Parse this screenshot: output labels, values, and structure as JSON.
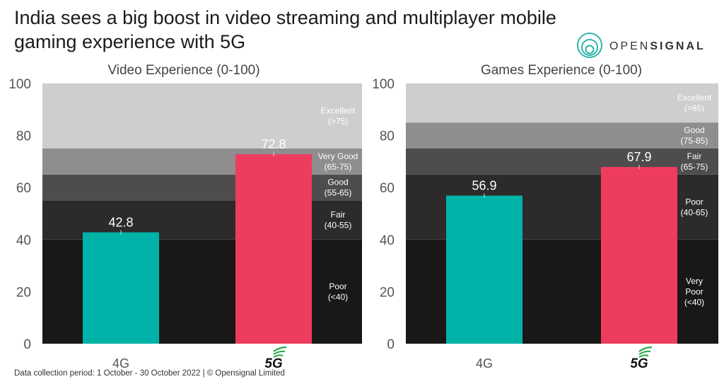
{
  "title_line1": "India sees a big boost in video streaming and multiplayer mobile",
  "title_line2": "gaming experience with 5G",
  "logo": {
    "text_light": "OPEN",
    "text_bold": "SIGNAL",
    "icon": "opensignal-rings-icon"
  },
  "footer": "Data collection period: 1 October - 30 October 2022  |  © Opensignal Limited",
  "colors": {
    "4g": "#00b3a9",
    "5g": "#ee3c5f",
    "5g_logo_wave": "#2eaa4f"
  },
  "chart_data": [
    {
      "type": "bar",
      "title": "Video Experience (0-100)",
      "categories": [
        "4G",
        "5G"
      ],
      "values": [
        42.8,
        72.8
      ],
      "value_labels": [
        "42.8",
        "72.8"
      ],
      "ylim": [
        0,
        100
      ],
      "yticks": [
        "0",
        "20",
        "40",
        "60",
        "80",
        "100"
      ],
      "bands": [
        {
          "from": 0,
          "to": 40,
          "lines": [
            "Poor",
            "(<40)"
          ],
          "color": "#191718"
        },
        {
          "from": 40,
          "to": 55,
          "lines": [
            "Fair",
            "(40-55)"
          ],
          "color": "#2c2a2b"
        },
        {
          "from": 55,
          "to": 65,
          "lines": [
            "Good",
            "(55-65)"
          ],
          "color": "#4e4c4d"
        },
        {
          "from": 65,
          "to": 75,
          "lines": [
            "Very Good",
            "(65-75)"
          ],
          "color": "#8f8d8e"
        },
        {
          "from": 75,
          "to": 100,
          "lines": [
            "Excellent",
            "(>75)"
          ],
          "color": "#cfcdce"
        }
      ]
    },
    {
      "type": "bar",
      "title": "Games  Experience (0-100)",
      "categories": [
        "4G",
        "5G"
      ],
      "values": [
        56.9,
        67.9
      ],
      "value_labels": [
        "56.9",
        "67.9"
      ],
      "ylim": [
        0,
        100
      ],
      "yticks": [
        "0",
        "20",
        "40",
        "60",
        "80",
        "100"
      ],
      "bands": [
        {
          "from": 0,
          "to": 40,
          "lines": [
            "Very",
            "Poor",
            "(<40)"
          ],
          "color": "#191718"
        },
        {
          "from": 40,
          "to": 65,
          "lines": [
            "Poor",
            "(40-65)"
          ],
          "color": "#2c2a2b"
        },
        {
          "from": 65,
          "to": 75,
          "lines": [
            "Fair",
            "(65-75)"
          ],
          "color": "#4e4c4d"
        },
        {
          "from": 75,
          "to": 85,
          "lines": [
            "Good",
            "(75-85)"
          ],
          "color": "#8f8d8e"
        },
        {
          "from": 85,
          "to": 100,
          "lines": [
            "Excellent",
            "(>85)"
          ],
          "color": "#cfcdce"
        }
      ]
    }
  ]
}
